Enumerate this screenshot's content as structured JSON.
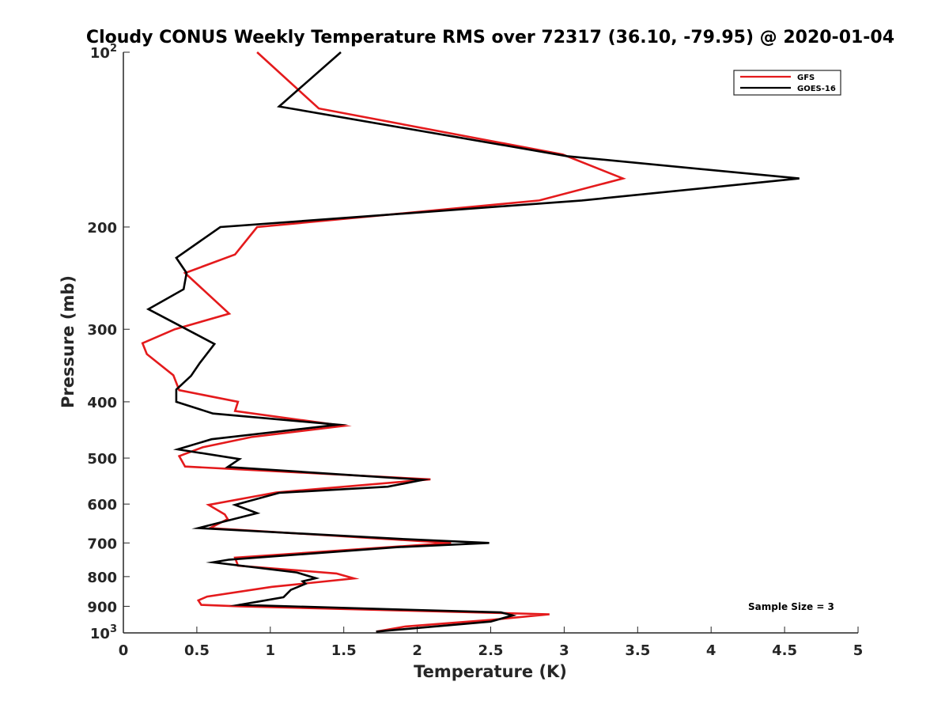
{
  "chart_data": {
    "type": "line",
    "title": "Cloudy CONUS Weekly Temperature RMS over 72317 (36.10, -79.95) @ 2020-01-04",
    "xlabel": "Temperature (K)",
    "ylabel": "Pressure (mb)",
    "xlim": [
      0,
      5
    ],
    "ylim": [
      100,
      1000
    ],
    "y_scale": "log",
    "y_reversed": true,
    "x_ticks": [
      0,
      0.5,
      1,
      1.5,
      2,
      2.5,
      3,
      3.5,
      4,
      4.5,
      5
    ],
    "x_tick_labels": [
      "0",
      "0.5",
      "1",
      "1.5",
      "2",
      "2.5",
      "3",
      "3.5",
      "4",
      "4.5",
      "5"
    ],
    "y_ticks": [
      100,
      200,
      300,
      400,
      500,
      600,
      700,
      800,
      900,
      1000
    ],
    "y_tick_labels": [
      {
        "base": "10",
        "exp": "2"
      },
      {
        "base": "200",
        "exp": ""
      },
      {
        "base": "300",
        "exp": ""
      },
      {
        "base": "400",
        "exp": ""
      },
      {
        "base": "500",
        "exp": ""
      },
      {
        "base": "600",
        "exp": ""
      },
      {
        "base": "700",
        "exp": ""
      },
      {
        "base": "800",
        "exp": ""
      },
      {
        "base": "900",
        "exp": ""
      },
      {
        "base": "10",
        "exp": "3"
      }
    ],
    "grid": false,
    "legend_position": "top-right",
    "annotation": "Sample Size = 3",
    "series": [
      {
        "name": "GFS",
        "color": "#e41a1c",
        "points": [
          [
            0.91,
            100
          ],
          [
            1.33,
            125
          ],
          [
            2.99,
            150
          ],
          [
            3.4,
            165
          ],
          [
            2.83,
            180
          ],
          [
            0.91,
            200
          ],
          [
            0.76,
            223
          ],
          [
            0.42,
            240
          ],
          [
            0.72,
            282
          ],
          [
            0.35,
            300
          ],
          [
            0.13,
            317
          ],
          [
            0.16,
            331
          ],
          [
            0.34,
            360
          ],
          [
            0.38,
            382
          ],
          [
            0.78,
            400
          ],
          [
            0.76,
            415
          ],
          [
            1.5,
            440
          ],
          [
            0.87,
            460
          ],
          [
            0.54,
            479
          ],
          [
            0.38,
            496
          ],
          [
            0.42,
            517
          ],
          [
            2.09,
            544
          ],
          [
            1.04,
            573
          ],
          [
            0.58,
            602
          ],
          [
            0.69,
            625
          ],
          [
            0.71,
            637
          ],
          [
            0.59,
            660
          ],
          [
            2.23,
            700
          ],
          [
            0.76,
            742
          ],
          [
            0.78,
            766
          ],
          [
            1.45,
            790
          ],
          [
            1.57,
            806
          ],
          [
            1.01,
            833
          ],
          [
            0.57,
            866
          ],
          [
            0.51,
            879
          ],
          [
            0.53,
            895
          ],
          [
            0.79,
            900
          ],
          [
            2.9,
            929
          ],
          [
            2.5,
            950
          ],
          [
            1.92,
            975
          ],
          [
            1.72,
            995
          ]
        ]
      },
      {
        "name": "GOES-16",
        "color": "#000000",
        "points": [
          [
            1.48,
            100
          ],
          [
            1.06,
            124
          ],
          [
            3.02,
            151
          ],
          [
            4.6,
            165
          ],
          [
            3.12,
            180
          ],
          [
            0.66,
            200
          ],
          [
            0.36,
            226
          ],
          [
            0.43,
            240
          ],
          [
            0.41,
            256
          ],
          [
            0.17,
            277
          ],
          [
            0.62,
            318
          ],
          [
            0.52,
            343
          ],
          [
            0.46,
            361
          ],
          [
            0.36,
            381
          ],
          [
            0.36,
            400
          ],
          [
            0.61,
            419
          ],
          [
            1.46,
            438
          ],
          [
            0.6,
            464
          ],
          [
            0.37,
            483
          ],
          [
            0.79,
            502
          ],
          [
            0.71,
            518
          ],
          [
            2.04,
            545
          ],
          [
            1.8,
            560
          ],
          [
            1.06,
            574
          ],
          [
            0.76,
            602
          ],
          [
            0.91,
            622
          ],
          [
            0.51,
            660
          ],
          [
            1.94,
            690
          ],
          [
            2.49,
            700
          ],
          [
            1.86,
            712
          ],
          [
            0.72,
            748
          ],
          [
            0.61,
            756
          ],
          [
            1.18,
            787
          ],
          [
            1.31,
            805
          ],
          [
            1.22,
            815
          ],
          [
            1.24,
            823
          ],
          [
            1.14,
            843
          ],
          [
            1.09,
            868
          ],
          [
            0.79,
            895
          ],
          [
            2.57,
            922
          ],
          [
            2.65,
            933
          ],
          [
            2.5,
            956
          ],
          [
            1.72,
            995
          ]
        ]
      }
    ]
  }
}
